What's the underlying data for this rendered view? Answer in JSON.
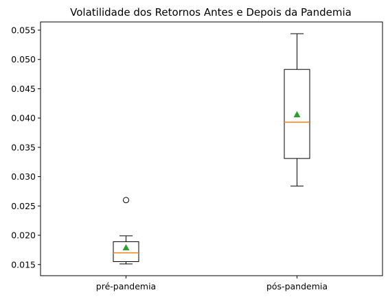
{
  "chart_data": {
    "type": "box",
    "title": "Volatilidade dos Retornos Antes e Depois da Pandemia",
    "xlabel": "",
    "ylabel": "",
    "categories": [
      "pré-pandemia",
      "pós-pandemia"
    ],
    "boxes": [
      {
        "label": "pré-pandemia",
        "whisker_low": 0.0151,
        "q1": 0.0155,
        "median": 0.017,
        "q3": 0.0189,
        "whisker_high": 0.0199,
        "mean": 0.0179,
        "outliers": [
          0.026
        ]
      },
      {
        "label": "pós-pandemia",
        "whisker_low": 0.0284,
        "q1": 0.0331,
        "median": 0.0393,
        "q3": 0.0483,
        "whisker_high": 0.0544,
        "mean": 0.0406,
        "outliers": []
      }
    ],
    "ylim": [
      0.0131,
      0.0564
    ],
    "yticks": [
      "0.015",
      "0.020",
      "0.025",
      "0.030",
      "0.035",
      "0.040",
      "0.045",
      "0.050",
      "0.055"
    ],
    "ytick_values": [
      0.015,
      0.02,
      0.025,
      0.03,
      0.035,
      0.04,
      0.045,
      0.05,
      0.055
    ],
    "grid": false,
    "colors": {
      "box": "#000000",
      "median": "#ff7f0e",
      "mean": "#2ca02c",
      "outlier": "#000000"
    }
  }
}
